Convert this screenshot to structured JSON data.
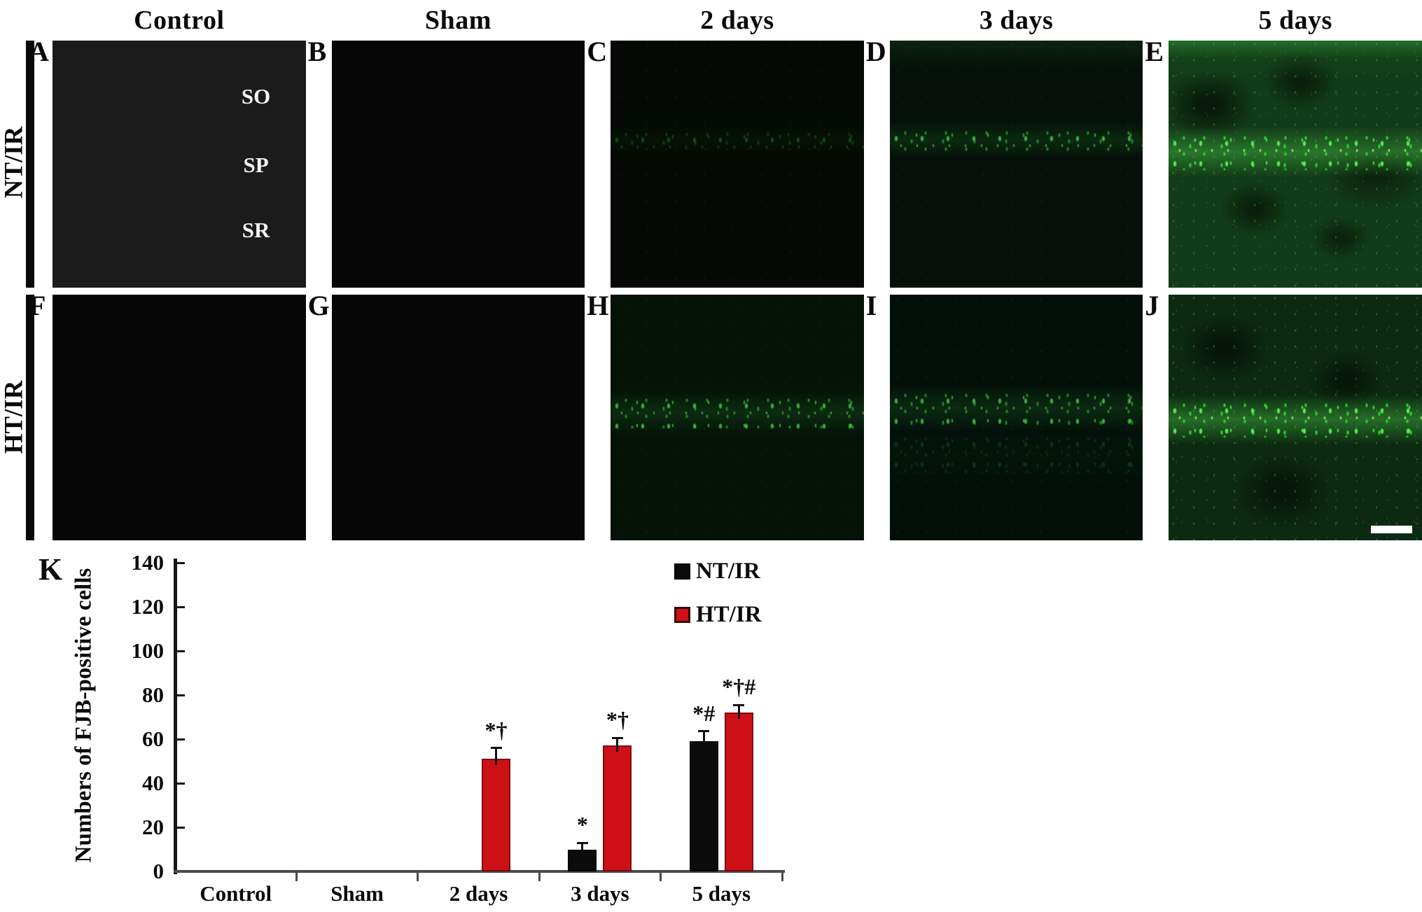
{
  "figure": {
    "column_headers": [
      "Control",
      "Sham",
      "2 days",
      "3 days",
      "5 days"
    ],
    "rows": [
      {
        "label": "NT/IR",
        "panels": [
          {
            "letter": "A"
          },
          {
            "letter": "B"
          },
          {
            "letter": "C"
          },
          {
            "letter": "D"
          },
          {
            "letter": "E"
          }
        ]
      },
      {
        "label": "HT/IR",
        "panels": [
          {
            "letter": "F"
          },
          {
            "letter": "G"
          },
          {
            "letter": "H"
          },
          {
            "letter": "I"
          },
          {
            "letter": "J"
          }
        ]
      }
    ],
    "panel_a_region_labels": [
      "SO",
      "SP",
      "SR"
    ],
    "scale_bar_panel": "J"
  },
  "chart": {
    "panel_letter": "K",
    "ylabel": "Numbers of FJB-positive cells",
    "legend": [
      {
        "label": "NT/IR",
        "color": "#0b0b0b"
      },
      {
        "label": "HT/IR",
        "color": "#cc1016"
      }
    ]
  },
  "chart_data": {
    "type": "bar",
    "title": "",
    "categories": [
      "Control",
      "Sham",
      "2 days",
      "3 days",
      "5 days"
    ],
    "series": [
      {
        "name": "NT/IR",
        "color": "#0b0b0b",
        "edge_color": "#000000",
        "values": [
          0,
          0,
          0,
          10,
          59
        ],
        "errors": [
          0,
          0,
          0,
          3,
          4.5
        ],
        "sig": [
          "",
          "",
          "",
          "*",
          "*#"
        ]
      },
      {
        "name": "HT/IR",
        "color": "#cc1016",
        "edge_color": "#7e0a10",
        "values": [
          0,
          0,
          51,
          57,
          72
        ],
        "errors": [
          0,
          0,
          5,
          3.5,
          3.5
        ],
        "sig": [
          "",
          "",
          "*†",
          "*†",
          "*†#"
        ]
      }
    ],
    "xlabel": "",
    "ylabel": "Numbers of FJB-positive cells",
    "ylim": [
      0,
      140
    ],
    "yticks": [
      0,
      20,
      40,
      60,
      80,
      100,
      120,
      140
    ],
    "grid": false,
    "legend_position": "upper right"
  }
}
